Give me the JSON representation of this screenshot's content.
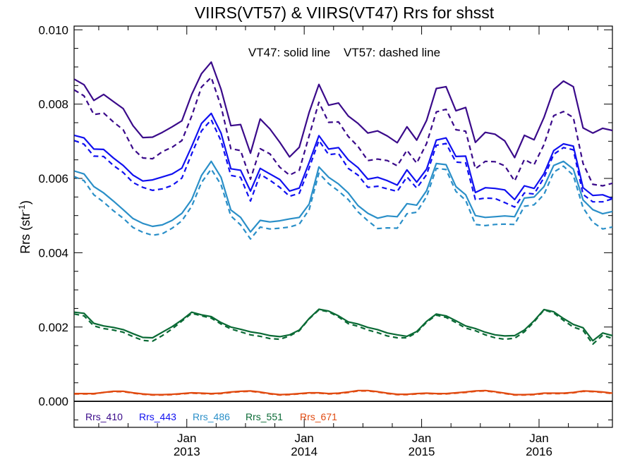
{
  "chart_data": {
    "type": "line",
    "title": "VIIRS(VT57) & VIIRS(VT47)  Rrs for shsst",
    "annotation": "VT47: solid line    VT57: dashed line",
    "ylabel": {
      "main": "Rrs (str",
      "sup": "-1",
      "close": ")"
    },
    "xlabel": "",
    "ylim": [
      -0.0007,
      0.0101
    ],
    "yticks": [
      0.0,
      0.002,
      0.004,
      0.006,
      0.008,
      0.01
    ],
    "ytick_labels": [
      "0.000",
      "0.002",
      "0.004",
      "0.006",
      "0.008",
      "0.010"
    ],
    "xlim": [
      2012.04,
      2016.625
    ],
    "xticks": [
      {
        "x": 2013.0,
        "month": "Jan",
        "year": "2013"
      },
      {
        "x": 2014.0,
        "month": "Jan",
        "year": "2014"
      },
      {
        "x": 2015.0,
        "month": "Jan",
        "year": "2015"
      },
      {
        "x": 2016.0,
        "month": "Jan",
        "year": "2016"
      }
    ],
    "zero_line": 0.0,
    "x": [
      2012.042,
      2012.125,
      2012.208,
      2012.292,
      2012.375,
      2012.458,
      2012.542,
      2012.625,
      2012.708,
      2012.792,
      2012.875,
      2012.958,
      2013.042,
      2013.125,
      2013.208,
      2013.292,
      2013.375,
      2013.458,
      2013.542,
      2013.625,
      2013.708,
      2013.792,
      2013.875,
      2013.958,
      2014.042,
      2014.125,
      2014.208,
      2014.292,
      2014.375,
      2014.458,
      2014.542,
      2014.625,
      2014.708,
      2014.792,
      2014.875,
      2014.958,
      2015.042,
      2015.125,
      2015.208,
      2015.292,
      2015.375,
      2015.458,
      2015.542,
      2015.625,
      2015.708,
      2015.792,
      2015.875,
      2015.958,
      2016.042,
      2016.125,
      2016.208,
      2016.292,
      2016.375,
      2016.458,
      2016.542,
      2016.625
    ],
    "series": [
      {
        "name": "Rrs_410",
        "color": "#3a0a8a",
        "style": "solid",
        "values": [
          0.00867,
          0.00852,
          0.0081,
          0.00826,
          0.00807,
          0.00788,
          0.00742,
          0.0071,
          0.00711,
          0.00724,
          0.00739,
          0.00755,
          0.00826,
          0.00882,
          0.00913,
          0.0084,
          0.00742,
          0.00745,
          0.00668,
          0.0076,
          0.00733,
          0.00697,
          0.00658,
          0.00684,
          0.00778,
          0.00853,
          0.00797,
          0.00803,
          0.00768,
          0.00748,
          0.00722,
          0.00728,
          0.00714,
          0.00696,
          0.00739,
          0.00703,
          0.00756,
          0.00842,
          0.00847,
          0.00782,
          0.00791,
          0.00697,
          0.00724,
          0.00719,
          0.00701,
          0.00656,
          0.00716,
          0.00704,
          0.00764,
          0.00839,
          0.00862,
          0.00847,
          0.00736,
          0.00722,
          0.00735,
          0.00729
        ]
      },
      {
        "name": "Rrs_410",
        "color": "#3a0a8a",
        "style": "dashed",
        "values": [
          0.00838,
          0.00822,
          0.00772,
          0.00776,
          0.00752,
          0.00731,
          0.0068,
          0.00655,
          0.00653,
          0.00672,
          0.00684,
          0.00702,
          0.00768,
          0.00846,
          0.00872,
          0.00794,
          0.0068,
          0.00675,
          0.00598,
          0.0068,
          0.00666,
          0.0063,
          0.00609,
          0.00622,
          0.00715,
          0.00805,
          0.00751,
          0.00752,
          0.00713,
          0.00686,
          0.00648,
          0.00652,
          0.00648,
          0.00634,
          0.00676,
          0.00641,
          0.00694,
          0.00779,
          0.00786,
          0.00731,
          0.00727,
          0.00626,
          0.00646,
          0.00645,
          0.00634,
          0.00593,
          0.00651,
          0.00637,
          0.00691,
          0.00769,
          0.0078,
          0.00764,
          0.0064,
          0.00584,
          0.0058,
          0.00587
        ]
      },
      {
        "name": "Rrs_443",
        "color": "#1010f0",
        "style": "solid",
        "values": [
          0.00716,
          0.00709,
          0.00679,
          0.00678,
          0.00655,
          0.00635,
          0.00609,
          0.00593,
          0.00596,
          0.00604,
          0.00612,
          0.00628,
          0.00686,
          0.00748,
          0.00775,
          0.00722,
          0.00626,
          0.00622,
          0.00566,
          0.00627,
          0.00612,
          0.00597,
          0.00566,
          0.00574,
          0.00643,
          0.00715,
          0.00679,
          0.00683,
          0.0065,
          0.00629,
          0.00598,
          0.00603,
          0.00594,
          0.00582,
          0.00623,
          0.0059,
          0.00625,
          0.00703,
          0.00709,
          0.00659,
          0.0066,
          0.00562,
          0.00575,
          0.00573,
          0.00569,
          0.00543,
          0.0058,
          0.00573,
          0.00613,
          0.00675,
          0.00693,
          0.00687,
          0.00575,
          0.00554,
          0.00556,
          0.00546
        ]
      },
      {
        "name": "Rrs_443",
        "color": "#1010f0",
        "style": "dashed",
        "values": [
          0.00702,
          0.00692,
          0.0066,
          0.00659,
          0.00635,
          0.00616,
          0.00589,
          0.00576,
          0.00568,
          0.00572,
          0.00581,
          0.00601,
          0.00666,
          0.00728,
          0.00758,
          0.00701,
          0.00608,
          0.00603,
          0.00539,
          0.00611,
          0.00595,
          0.00576,
          0.00552,
          0.0056,
          0.00628,
          0.00702,
          0.00664,
          0.00667,
          0.00627,
          0.00609,
          0.00576,
          0.00579,
          0.00572,
          0.00565,
          0.00604,
          0.00574,
          0.0061,
          0.00689,
          0.00694,
          0.00644,
          0.00642,
          0.00543,
          0.00547,
          0.00546,
          0.00535,
          0.00523,
          0.00561,
          0.00558,
          0.00602,
          0.00665,
          0.00683,
          0.00677,
          0.00557,
          0.00537,
          0.00537,
          0.00545
        ]
      },
      {
        "name": "Rrs_486",
        "color": "#2a8fc8",
        "style": "solid",
        "values": [
          0.0062,
          0.00612,
          0.00578,
          0.00561,
          0.00539,
          0.00516,
          0.00492,
          0.00479,
          0.00471,
          0.00475,
          0.00487,
          0.00506,
          0.00543,
          0.00608,
          0.00646,
          0.00603,
          0.00515,
          0.00495,
          0.00456,
          0.00487,
          0.00483,
          0.00486,
          0.00491,
          0.00495,
          0.00531,
          0.00631,
          0.00603,
          0.00585,
          0.00561,
          0.00527,
          0.00506,
          0.00493,
          0.00499,
          0.00497,
          0.00532,
          0.00528,
          0.00567,
          0.0064,
          0.00637,
          0.00578,
          0.00556,
          0.005,
          0.00495,
          0.00497,
          0.00499,
          0.00497,
          0.00547,
          0.0055,
          0.00578,
          0.00635,
          0.00646,
          0.00625,
          0.00542,
          0.00516,
          0.00505,
          0.00511
        ]
      },
      {
        "name": "Rrs_486",
        "color": "#2a8fc8",
        "style": "dashed",
        "values": [
          0.00605,
          0.00594,
          0.00556,
          0.00536,
          0.00513,
          0.00493,
          0.00468,
          0.00455,
          0.00447,
          0.00451,
          0.00466,
          0.00486,
          0.00525,
          0.00589,
          0.00625,
          0.00583,
          0.00499,
          0.00475,
          0.00437,
          0.00469,
          0.00464,
          0.00466,
          0.00469,
          0.00477,
          0.00516,
          0.00614,
          0.00586,
          0.00566,
          0.00543,
          0.0051,
          0.00486,
          0.00465,
          0.00467,
          0.00466,
          0.00505,
          0.00509,
          0.00551,
          0.00627,
          0.00624,
          0.00565,
          0.00541,
          0.00476,
          0.00473,
          0.00476,
          0.00477,
          0.00476,
          0.00525,
          0.00529,
          0.00557,
          0.00617,
          0.00633,
          0.00608,
          0.00521,
          0.00482,
          0.00464,
          0.00469
        ]
      },
      {
        "name": "Rrs_551",
        "color": "#0a6a35",
        "style": "solid",
        "values": [
          0.0024,
          0.00237,
          0.0021,
          0.00203,
          0.00199,
          0.00193,
          0.00182,
          0.00172,
          0.00171,
          0.00186,
          0.00201,
          0.00219,
          0.0024,
          0.00233,
          0.00228,
          0.00212,
          0.002,
          0.00194,
          0.00187,
          0.00183,
          0.00177,
          0.00174,
          0.00179,
          0.00192,
          0.00223,
          0.00248,
          0.00243,
          0.0023,
          0.00214,
          0.00208,
          0.00199,
          0.00193,
          0.00184,
          0.00179,
          0.00175,
          0.00188,
          0.00215,
          0.00235,
          0.0023,
          0.00217,
          0.00203,
          0.00196,
          0.00186,
          0.00179,
          0.00176,
          0.00177,
          0.00192,
          0.00217,
          0.00247,
          0.00241,
          0.00223,
          0.00207,
          0.00198,
          0.00163,
          0.00184,
          0.00177
        ]
      },
      {
        "name": "Rrs_551",
        "color": "#0a6a35",
        "style": "dashed",
        "values": [
          0.00235,
          0.0023,
          0.00203,
          0.00196,
          0.00192,
          0.00186,
          0.00174,
          0.00164,
          0.00162,
          0.00177,
          0.00195,
          0.00216,
          0.00237,
          0.0023,
          0.00224,
          0.00208,
          0.00195,
          0.00187,
          0.00179,
          0.00175,
          0.00169,
          0.00167,
          0.00176,
          0.0019,
          0.00222,
          0.00246,
          0.00241,
          0.00227,
          0.00209,
          0.00202,
          0.00192,
          0.00185,
          0.00176,
          0.00171,
          0.00171,
          0.00185,
          0.00213,
          0.00232,
          0.00226,
          0.00212,
          0.00197,
          0.0019,
          0.00179,
          0.00171,
          0.00167,
          0.0017,
          0.00187,
          0.00214,
          0.00246,
          0.00238,
          0.00218,
          0.002,
          0.00191,
          0.00154,
          0.00178,
          0.00169
        ]
      },
      {
        "name": "Rrs_671",
        "color": "#e04a10",
        "style": "solid",
        "values": [
          0.00021,
          0.00021,
          0.00021,
          0.00024,
          0.00027,
          0.00027,
          0.00023,
          0.0002,
          0.00018,
          0.00018,
          0.00019,
          0.00021,
          0.00023,
          0.00022,
          0.00021,
          0.00022,
          0.00025,
          0.00027,
          0.00028,
          0.00025,
          0.00021,
          0.00018,
          0.00019,
          0.00021,
          0.00023,
          0.00023,
          0.00021,
          0.00022,
          0.00025,
          0.00029,
          0.00029,
          0.00026,
          0.00022,
          0.00019,
          0.00019,
          0.00021,
          0.00022,
          0.00021,
          0.00021,
          0.00023,
          0.00025,
          0.00028,
          0.00029,
          0.00026,
          0.00022,
          0.00018,
          0.00018,
          0.00019,
          0.00022,
          0.00022,
          0.00022,
          0.00024,
          0.00028,
          0.00027,
          0.00025,
          0.00022
        ]
      },
      {
        "name": "Rrs_671",
        "color": "#e04a10",
        "style": "dashed",
        "values": [
          0.0002,
          0.0002,
          0.0002,
          0.00024,
          0.00026,
          0.00026,
          0.00022,
          0.00019,
          0.00017,
          0.00017,
          0.00018,
          0.0002,
          0.00022,
          0.00021,
          0.0002,
          0.00021,
          0.00024,
          0.00026,
          0.00027,
          0.00024,
          0.0002,
          0.00017,
          0.00018,
          0.0002,
          0.00022,
          0.00022,
          0.0002,
          0.00021,
          0.00024,
          0.00028,
          0.00028,
          0.00025,
          0.00021,
          0.00018,
          0.00018,
          0.0002,
          0.00021,
          0.0002,
          0.0002,
          0.00022,
          0.00024,
          0.00027,
          0.00028,
          0.00025,
          0.00021,
          0.00017,
          0.00017,
          0.00018,
          0.00021,
          0.00021,
          0.00021,
          0.00023,
          0.00027,
          0.00026,
          0.00024,
          0.00021
        ]
      }
    ],
    "legend": [
      {
        "label": "Rrs_410",
        "color": "#3a0a8a"
      },
      {
        "label": "Rrs_443",
        "color": "#1010f0"
      },
      {
        "label": "Rrs_486",
        "color": "#2a8fc8"
      },
      {
        "label": "Rrs_551",
        "color": "#0a6a35"
      },
      {
        "label": "Rrs_671",
        "color": "#e04a10"
      }
    ],
    "legend_placement": "bottom-left",
    "grid": false
  }
}
